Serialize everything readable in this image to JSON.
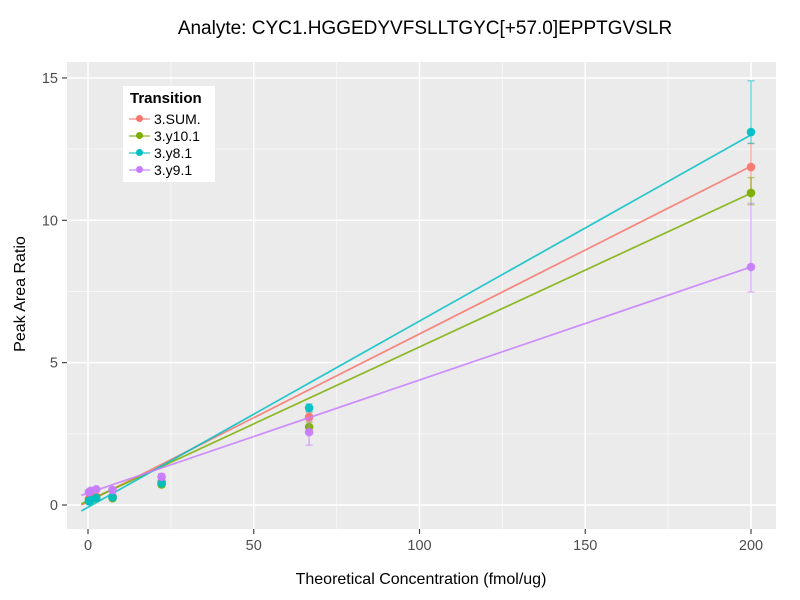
{
  "title": "Analyte: CYC1.HGGEDYVFSLLTGYC[+57.0]EPPTGVSLR",
  "axes": {
    "x": {
      "title": "Theoretical Concentration (fmol/ug)",
      "tick_labels": [
        "0",
        "50",
        "100",
        "150",
        "200"
      ]
    },
    "y": {
      "title": "Peak Area Ratio",
      "tick_labels": [
        "0",
        "5",
        "10",
        "15"
      ]
    }
  },
  "legend": {
    "title": "Transition"
  },
  "colors": {
    "panel_background": "#EBEBEB",
    "grid_major": "#FFFFFF",
    "grid_minor": "#FFFFFF",
    "tick_mark": "#333333",
    "tick_label": "#4D4D4D",
    "text": "#000000"
  },
  "chart_data": {
    "type": "scatter",
    "title": "Analyte: CYC1.HGGEDYVFSLLTGYC[+57.0]EPPTGVSLR",
    "xlabel": "Theoretical Concentration (fmol/ug)",
    "ylabel": "Peak Area Ratio",
    "xlim": [
      -6,
      207
    ],
    "ylim": [
      -0.85,
      15.6
    ],
    "x_ticks": [
      0,
      50,
      100,
      150,
      200
    ],
    "x_minor_ticks": [
      25,
      75,
      125,
      175
    ],
    "y_ticks": [
      0,
      5,
      10,
      15
    ],
    "y_minor_ticks": [
      2.5,
      7.5,
      12.5
    ],
    "grid": true,
    "legend_position": "top-left-inside",
    "legend_title": "Transition",
    "series": [
      {
        "name": "3.SUM.",
        "color": "#F8766D",
        "fit_line": {
          "intercept": 0.12,
          "slope": 0.0589,
          "x_start": -2,
          "x_end": 200
        },
        "points": [
          {
            "x": 0.27,
            "y": 0.22
          },
          {
            "x": 0.82,
            "y": 0.25
          },
          {
            "x": 2.47,
            "y": 0.3
          },
          {
            "x": 7.41,
            "y": 0.3
          },
          {
            "x": 22.2,
            "y": 0.82,
            "lo": 0.74,
            "hi": 0.92
          },
          {
            "x": 66.7,
            "y": 3.09,
            "lo": 2.95,
            "hi": 3.25
          },
          {
            "x": 200,
            "y": 11.87,
            "lo": 11.0,
            "hi": 12.7
          }
        ]
      },
      {
        "name": "3.y10.1",
        "color": "#7CAE00",
        "fit_line": {
          "intercept": 0.15,
          "slope": 0.054,
          "x_start": -2,
          "x_end": 200
        },
        "points": [
          {
            "x": 0.27,
            "y": 0.15
          },
          {
            "x": 0.82,
            "y": 0.18
          },
          {
            "x": 2.47,
            "y": 0.24
          },
          {
            "x": 7.41,
            "y": 0.24
          },
          {
            "x": 22.2,
            "y": 0.72,
            "lo": 0.63,
            "hi": 0.82
          },
          {
            "x": 66.7,
            "y": 2.74,
            "lo": 2.6,
            "hi": 2.9
          },
          {
            "x": 200,
            "y": 10.96,
            "lo": 10.55,
            "hi": 11.5
          }
        ]
      },
      {
        "name": "3.y8.1",
        "color": "#00BFC4",
        "fit_line": {
          "intercept": -0.08,
          "slope": 0.0654,
          "x_start": -2,
          "x_end": 200
        },
        "points": [
          {
            "x": 0.27,
            "y": 0.13
          },
          {
            "x": 0.82,
            "y": 0.18
          },
          {
            "x": 2.47,
            "y": 0.25
          },
          {
            "x": 7.41,
            "y": 0.27
          },
          {
            "x": 22.2,
            "y": 0.76
          },
          {
            "x": 66.7,
            "y": 3.41,
            "lo": 3.28,
            "hi": 3.55
          },
          {
            "x": 200,
            "y": 13.1,
            "lo": 12.7,
            "hi": 14.9
          }
        ]
      },
      {
        "name": "3.y9.1",
        "color": "#C77CFF",
        "fit_line": {
          "intercept": 0.42,
          "slope": 0.0397,
          "x_start": -2,
          "x_end": 200
        },
        "points": [
          {
            "x": 0.27,
            "y": 0.45
          },
          {
            "x": 0.82,
            "y": 0.5
          },
          {
            "x": 2.47,
            "y": 0.55
          },
          {
            "x": 7.41,
            "y": 0.53,
            "lo": 0.44,
            "hi": 0.62
          },
          {
            "x": 22.2,
            "y": 0.99,
            "lo": 0.9,
            "hi": 1.1
          },
          {
            "x": 66.7,
            "y": 2.56,
            "lo": 2.1,
            "hi": 3.0
          },
          {
            "x": 200,
            "y": 8.36,
            "lo": 7.48,
            "hi": 10.6
          }
        ]
      }
    ]
  }
}
